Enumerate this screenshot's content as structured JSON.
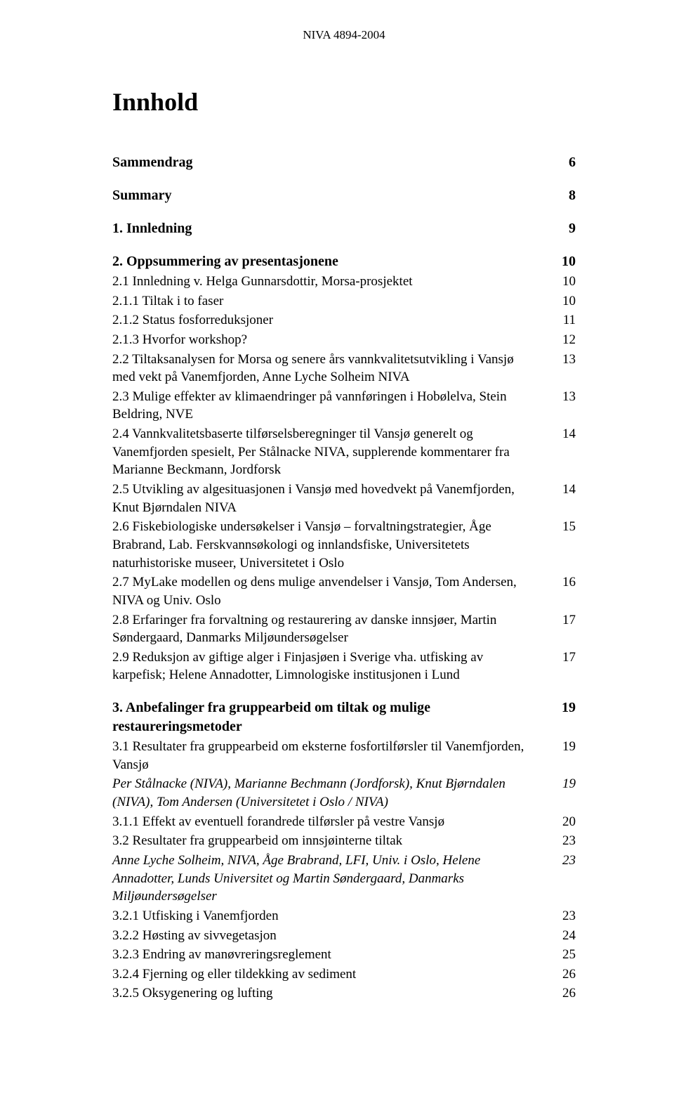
{
  "header": "NIVA 4894-2004",
  "title": "Innhold",
  "entries": [
    {
      "label": "Sammendrag",
      "page": "6",
      "bold": true,
      "gap": "none"
    },
    {
      "label": "Summary",
      "page": "8",
      "bold": true,
      "gap": "section"
    },
    {
      "label": "1. Innledning",
      "page": "9",
      "bold": true,
      "gap": "section"
    },
    {
      "label": "2. Oppsummering av presentasjonene",
      "page": "10",
      "bold": true,
      "gap": "section"
    },
    {
      "label": "2.1 Innledning v. Helga Gunnarsdottir, Morsa-prosjektet",
      "page": "10",
      "gap": "small"
    },
    {
      "label": "2.1.1 Tiltak i to faser",
      "page": "10",
      "gap": "small"
    },
    {
      "label": "2.1.2 Status fosforreduksjoner",
      "page": "11",
      "gap": "small"
    },
    {
      "label": "2.1.3 Hvorfor workshop?",
      "page": "12",
      "gap": "small"
    },
    {
      "label": "2.2 Tiltaksanalysen for Morsa og senere års vannkvalitetsutvikling i Vansjø med vekt på Vanemfjorden, Anne Lyche Solheim NIVA",
      "page": "13",
      "gap": "small"
    },
    {
      "label": "2.3 Mulige effekter av klimaendringer på vannføringen i Hobølelva, Stein Beldring, NVE",
      "page": "13",
      "gap": "small"
    },
    {
      "label": "2.4 Vannkvalitetsbaserte tilførselsberegninger til Vansjø generelt og Vanemfjorden spesielt, Per Stålnacke NIVA, supplerende kommentarer fra Marianne Beckmann, Jordforsk",
      "page": "14",
      "gap": "small"
    },
    {
      "label": "2.5 Utvikling av algesituasjonen i Vansjø med hovedvekt på Vanemfjorden, Knut Bjørndalen NIVA",
      "page": "14",
      "gap": "small"
    },
    {
      "label": "2.6 Fiskebiologiske undersøkelser i Vansjø – forvaltningstrategier, Åge Brabrand, Lab. Ferskvannsøkologi og innlandsfiske, Universitetets naturhistoriske museer, Universitetet i Oslo",
      "page": "15",
      "gap": "small"
    },
    {
      "label": "2.7 MyLake modellen og dens mulige anvendelser i Vansjø, Tom Andersen, NIVA og Univ. Oslo",
      "page": "16",
      "gap": "small"
    },
    {
      "label": "2.8 Erfaringer fra forvaltning og restaurering av danske innsjøer, Martin Søndergaard, Danmarks Miljøundersøgelser",
      "page": "17",
      "gap": "small"
    },
    {
      "label": "2.9 Reduksjon av giftige alger i Finjasjøen i Sverige vha. utfisking av karpefisk; Helene Annadotter, Limnologiske institusjonen i Lund",
      "page": "17",
      "gap": "small"
    },
    {
      "label": "3. Anbefalinger fra gruppearbeid om tiltak og mulige restaureringsmetoder",
      "page": "19",
      "bold": true,
      "gap": "section"
    },
    {
      "label": "3.1 Resultater fra gruppearbeid om eksterne fosfortilførsler til Vanemfjorden, Vansjø",
      "page": "19",
      "gap": "small"
    },
    {
      "label": "Per Stålnacke (NIVA), Marianne Bechmann (Jordforsk), Knut Bjørndalen (NIVA), Tom Andersen (Universitetet i Oslo / NIVA)",
      "page": "19",
      "italic": true,
      "gap": "small"
    },
    {
      "label": "3.1.1 Effekt av eventuell forandrede tilførsler på vestre Vansjø",
      "page": "20",
      "gap": "small"
    },
    {
      "label": "3.2 Resultater fra gruppearbeid om innsjøinterne tiltak",
      "page": "23",
      "gap": "small"
    },
    {
      "label": "Anne Lyche Solheim, NIVA, Åge Brabrand, LFI, Univ. i Oslo, Helene Annadotter, Lunds Universitet og Martin Søndergaard, Danmarks Miljøundersøgelser",
      "page": "23",
      "italic": true,
      "gap": "small"
    },
    {
      "label": "3.2.1 Utfisking i Vanemfjorden",
      "page": "23",
      "gap": "small"
    },
    {
      "label": "3.2.2 Høsting av sivvegetasjon",
      "page": "24",
      "gap": "small"
    },
    {
      "label": "3.2.3 Endring av manøvreringsreglement",
      "page": "25",
      "gap": "small"
    },
    {
      "label": "3.2.4 Fjerning og eller tildekking av sediment",
      "page": "26",
      "gap": "small"
    },
    {
      "label": "3.2.5 Oksygenering og lufting",
      "page": "26",
      "gap": "small"
    }
  ]
}
